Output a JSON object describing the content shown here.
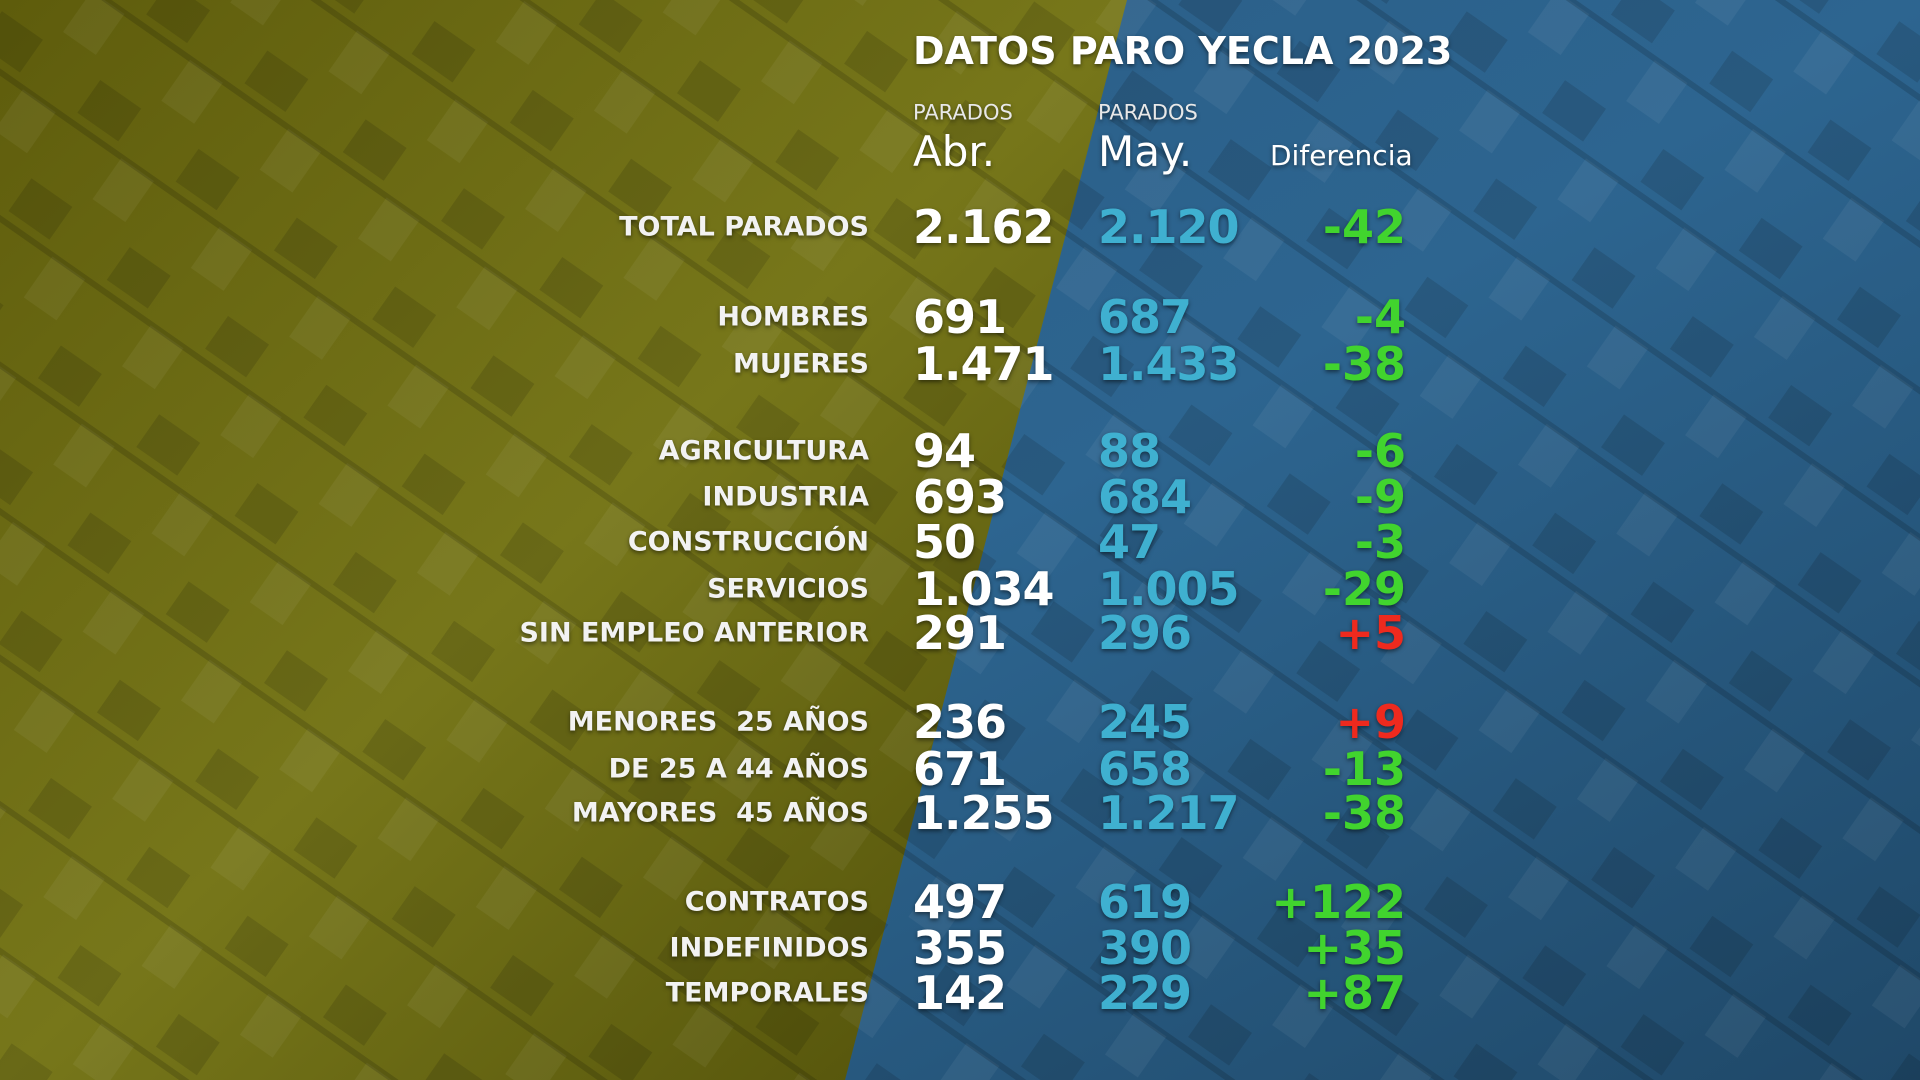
{
  "title": "DATOS PARO YECLA 2023",
  "header": {
    "abr_caption": "PARADOS",
    "abr": "Abr.",
    "may_caption": "PARADOS",
    "may": "May.",
    "diff": "Diferencia"
  },
  "colors": {
    "label": "#f2f2f2",
    "abr": "#ffffff",
    "may": "#3fb0d0",
    "diff_negative": "#41d42e",
    "diff_positive": "#ee2a1e"
  },
  "table": {
    "rows": [
      {
        "label": "TOTAL PARADOS",
        "abr": "2.162",
        "may": "2.120",
        "diff": "-42",
        "diff_color": "#41d42e"
      },
      {
        "label": "HOMBRES",
        "abr": "691",
        "may": "687",
        "diff": "-4",
        "diff_color": "#41d42e"
      },
      {
        "label": "MUJERES",
        "abr": "1.471",
        "may": "1.433",
        "diff": "-38",
        "diff_color": "#41d42e"
      },
      {
        "label": "AGRICULTURA",
        "abr": "94",
        "may": "88",
        "diff": "-6",
        "diff_color": "#41d42e"
      },
      {
        "label": "INDUSTRIA",
        "abr": "693",
        "may": "684",
        "diff": "-9",
        "diff_color": "#41d42e"
      },
      {
        "label": "CONSTRUCCIÓN",
        "abr": "50",
        "may": "47",
        "diff": "-3",
        "diff_color": "#41d42e"
      },
      {
        "label": "SERVICIOS",
        "abr": "1.034",
        "may": "1.005",
        "diff": "-29",
        "diff_color": "#41d42e"
      },
      {
        "label": "SIN EMPLEO ANTERIOR",
        "abr": "291",
        "may": "296",
        "diff": "+5",
        "diff_color": "#ee2a1e"
      },
      {
        "label": "MENORES  25 AÑOS",
        "abr": "236",
        "may": "245",
        "diff": "+9",
        "diff_color": "#ee2a1e"
      },
      {
        "label": "DE 25 A 44 AÑOS",
        "abr": "671",
        "may": "658",
        "diff": "-13",
        "diff_color": "#41d42e"
      },
      {
        "label": "MAYORES  45 AÑOS",
        "abr": "1.255",
        "may": "1.217",
        "diff": "-38",
        "diff_color": "#41d42e"
      },
      {
        "label": "CONTRATOS",
        "abr": "497",
        "may": "619",
        "diff": "+122",
        "diff_color": "#41d42e"
      },
      {
        "label": "INDEFINIDOS",
        "abr": "355",
        "may": "390",
        "diff": "+35",
        "diff_color": "#41d42e"
      },
      {
        "label": "TEMPORALES",
        "abr": "142",
        "may": "229",
        "diff": "+87",
        "diff_color": "#41d42e"
      }
    ]
  }
}
